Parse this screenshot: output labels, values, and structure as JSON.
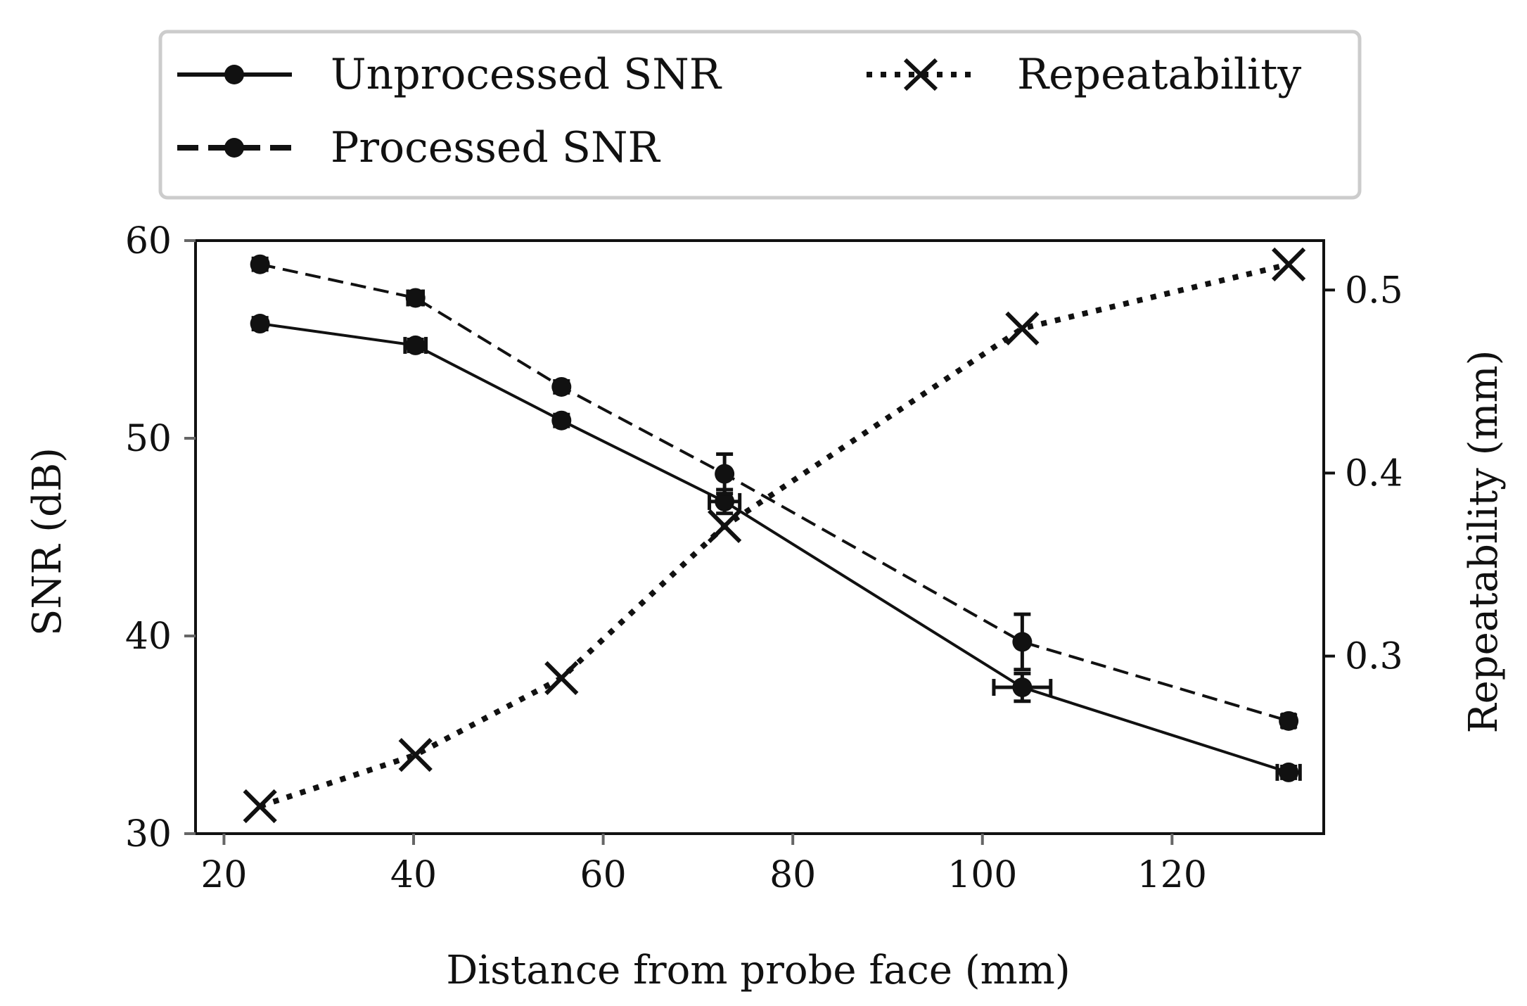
{
  "chart_data": {
    "type": "line",
    "title": "",
    "xlabel": "Distance from probe face (mm)",
    "ylabel": "SNR (dB)",
    "y2label": "Repeatability (mm)",
    "xlim": [
      17,
      136
    ],
    "ylim": [
      30,
      60
    ],
    "y2lim": [
      0.203,
      0.527
    ],
    "xticks": [
      20,
      40,
      60,
      80,
      100,
      120
    ],
    "yticks": [
      30,
      40,
      50,
      60
    ],
    "y2ticks": [
      0.3,
      0.4,
      0.5
    ],
    "y2tick_labels": [
      "0.3",
      "0.4",
      "0.5"
    ],
    "legend_position": "above plot",
    "series": [
      {
        "name": "Unprocessed SNR",
        "axis": "left",
        "style": "solid",
        "marker": "circle",
        "x": [
          23.8,
          40.2,
          55.6,
          72.8,
          104.2,
          132.3
        ],
        "y": [
          55.8,
          54.7,
          50.9,
          46.8,
          37.4,
          33.1
        ],
        "yerr": [
          0.3,
          0.3,
          0.3,
          0.6,
          0.7,
          0.3
        ],
        "xerr": [
          0,
          1.1,
          0,
          1.6,
          3.0,
          1.2
        ]
      },
      {
        "name": "Processed SNR",
        "axis": "left",
        "style": "dashed",
        "marker": "circle",
        "x": [
          23.8,
          40.2,
          55.6,
          72.8,
          104.2,
          132.3
        ],
        "y": [
          58.8,
          57.1,
          52.6,
          48.2,
          39.7,
          35.7
        ],
        "yerr": [
          0.3,
          0.3,
          0.3,
          1.0,
          1.4,
          0.3
        ],
        "xerr": [
          0,
          0.8,
          0,
          0,
          0,
          0.6
        ]
      },
      {
        "name": "Repeatability",
        "axis": "right",
        "style": "dotted",
        "marker": "x",
        "x": [
          23.8,
          40.2,
          55.6,
          72.8,
          104.2,
          132.3
        ],
        "y": [
          0.218,
          0.246,
          0.288,
          0.371,
          0.479,
          0.514
        ]
      }
    ]
  }
}
